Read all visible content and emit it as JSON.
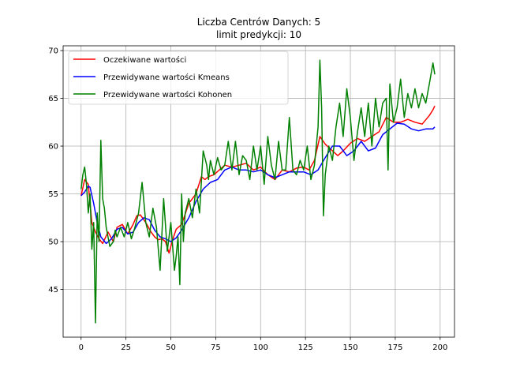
{
  "chart_data": {
    "type": "line",
    "title": "Liczba Centrów Danych: 5",
    "subtitle": "limit predykcji: 10",
    "xlabel": "",
    "ylabel": "",
    "xlim": [
      -10,
      208
    ],
    "ylim": [
      40,
      70.5
    ],
    "xticks": [
      0,
      25,
      50,
      75,
      100,
      125,
      150,
      175,
      200
    ],
    "yticks": [
      45,
      50,
      55,
      60,
      65,
      70
    ],
    "grid": true,
    "legend_position": "top-left",
    "series": [
      {
        "name": "Oczekiwane wartości",
        "color": "#ff0000",
        "x": [
          0,
          2,
          4,
          6,
          8,
          10,
          12,
          15,
          18,
          20,
          23,
          26,
          29,
          31,
          33,
          36,
          39,
          41,
          43,
          45,
          47,
          49,
          51,
          53,
          56,
          60,
          64,
          67,
          69,
          71,
          74,
          77,
          80,
          84,
          88,
          92,
          96,
          100,
          104,
          108,
          112,
          116,
          120,
          124,
          127,
          130,
          133,
          136,
          140,
          143,
          146,
          150,
          154,
          158,
          162,
          166,
          170,
          174,
          178,
          182,
          186,
          190,
          194,
          196,
          197
        ],
        "values": [
          54.8,
          56.5,
          56.0,
          52.0,
          51.0,
          50.3,
          49.8,
          51.0,
          50.0,
          51.5,
          51.8,
          50.8,
          51.8,
          52.7,
          52.8,
          52.0,
          51.0,
          50.5,
          50.2,
          50.3,
          50.0,
          48.8,
          50.2,
          51.3,
          51.8,
          54.0,
          55.0,
          56.8,
          56.5,
          56.8,
          57.0,
          57.5,
          58.0,
          57.8,
          58.0,
          58.2,
          57.5,
          57.8,
          57.0,
          56.5,
          57.5,
          57.3,
          57.7,
          57.8,
          57.5,
          58.5,
          61.0,
          60.2,
          59.5,
          59.0,
          59.5,
          60.3,
          60.8,
          60.5,
          61.0,
          61.5,
          63.0,
          62.5,
          62.5,
          62.8,
          62.5,
          62.3,
          63.2,
          63.8,
          64.2
        ]
      },
      {
        "name": "Przewidywane wartości Kmeans",
        "color": "#0000ff",
        "x": [
          0,
          2,
          4,
          5,
          7,
          9,
          11,
          14,
          17,
          20,
          23,
          26,
          29,
          32,
          35,
          38,
          41,
          44,
          47,
          50,
          53,
          56,
          60,
          64,
          68,
          72,
          76,
          80,
          84,
          88,
          92,
          96,
          100,
          104,
          108,
          112,
          116,
          120,
          124,
          128,
          132,
          136,
          140,
          144,
          148,
          152,
          156,
          160,
          164,
          168,
          172,
          176,
          180,
          184,
          188,
          192,
          196,
          197
        ],
        "values": [
          54.8,
          55.2,
          55.8,
          55.7,
          54.0,
          52.0,
          50.5,
          49.8,
          50.3,
          51.3,
          51.5,
          50.8,
          51.0,
          52.0,
          52.5,
          52.3,
          51.2,
          50.5,
          50.3,
          50.0,
          50.4,
          51.2,
          52.5,
          54.2,
          55.5,
          56.2,
          56.5,
          57.5,
          57.8,
          57.5,
          57.5,
          57.3,
          57.5,
          57.0,
          56.7,
          57.0,
          57.3,
          57.3,
          57.3,
          57.0,
          57.5,
          58.8,
          60.0,
          60.0,
          59.0,
          59.5,
          60.5,
          59.5,
          59.8,
          61.2,
          61.8,
          62.4,
          62.3,
          61.8,
          61.6,
          61.8,
          61.8,
          62.0
        ]
      },
      {
        "name": "Przewidywane wartości Kohonen",
        "color": "#008000",
        "x": [
          0,
          1,
          2,
          3,
          4,
          5,
          6,
          7,
          8,
          9,
          10,
          11,
          12,
          13,
          14,
          16,
          18,
          19,
          20,
          22,
          24,
          26,
          28,
          30,
          32,
          34,
          36,
          38,
          40,
          42,
          44,
          46,
          48,
          50,
          52,
          53,
          54,
          55,
          56,
          57,
          58,
          60,
          62,
          64,
          66,
          68,
          70,
          71,
          72,
          74,
          76,
          78,
          80,
          82,
          84,
          86,
          88,
          90,
          92,
          94,
          96,
          98,
          100,
          102,
          104,
          106,
          108,
          110,
          112,
          114,
          116,
          118,
          120,
          122,
          124,
          126,
          128,
          130,
          132,
          133,
          134,
          135,
          136,
          138,
          140,
          142,
          144,
          146,
          148,
          150,
          152,
          154,
          156,
          158,
          160,
          162,
          164,
          166,
          168,
          170,
          171,
          172,
          174,
          176,
          178,
          180,
          182,
          184,
          186,
          188,
          190,
          192,
          194,
          196,
          197
        ],
        "values": [
          55.5,
          57.0,
          57.8,
          56.0,
          53.0,
          55.0,
          49.2,
          52.0,
          41.5,
          53.0,
          50.0,
          60.6,
          54.5,
          53.5,
          51.5,
          49.5,
          50.0,
          51.2,
          50.5,
          51.5,
          50.5,
          52.0,
          50.3,
          51.5,
          53.0,
          56.2,
          52.0,
          50.5,
          53.5,
          51.5,
          47.0,
          54.5,
          49.0,
          52.0,
          47.0,
          48.5,
          50.5,
          45.5,
          55.0,
          50.0,
          53.0,
          54.5,
          52.5,
          55.5,
          53.0,
          59.5,
          58.0,
          56.5,
          58.5,
          57.0,
          58.8,
          57.5,
          58.0,
          60.5,
          57.5,
          60.5,
          57.0,
          59.0,
          58.5,
          56.5,
          60.0,
          57.5,
          60.0,
          56.0,
          61.0,
          58.0,
          56.5,
          60.5,
          57.5,
          57.5,
          63.0,
          57.5,
          57.0,
          58.5,
          57.5,
          60.0,
          56.5,
          58.0,
          62.0,
          69.0,
          64.0,
          52.7,
          57.0,
          60.0,
          58.5,
          62.0,
          64.5,
          61.0,
          66.0,
          63.0,
          58.5,
          61.5,
          64.0,
          61.0,
          64.5,
          60.0,
          65.0,
          62.0,
          64.5,
          65.0,
          57.5,
          66.5,
          62.5,
          64.0,
          67.0,
          63.0,
          65.5,
          64.0,
          66.0,
          64.0,
          65.5,
          64.5,
          66.5,
          68.7,
          67.5
        ]
      }
    ]
  }
}
